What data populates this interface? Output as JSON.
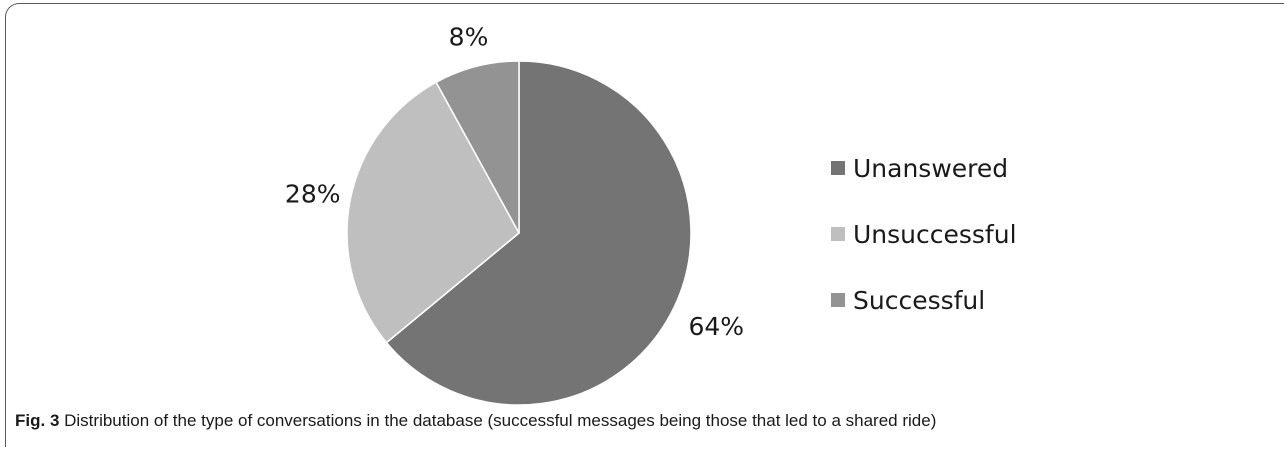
{
  "chart_data": {
    "type": "pie",
    "title": "",
    "slices": [
      {
        "name": "Unanswered",
        "value": 64,
        "label": "64%",
        "color": "#747474"
      },
      {
        "name": "Unsuccessful",
        "value": 28,
        "label": "28%",
        "color": "#bfbfbf"
      },
      {
        "name": "Successful",
        "value": 8,
        "label": "8%",
        "color": "#939393"
      }
    ],
    "start_angle_deg": 0,
    "direction": "clockwise",
    "legend_placement": "right"
  },
  "caption": {
    "label": "Fig. 3",
    "text": " Distribution of the type of conversations in the database (successful messages being those that led to a shared ride)"
  }
}
